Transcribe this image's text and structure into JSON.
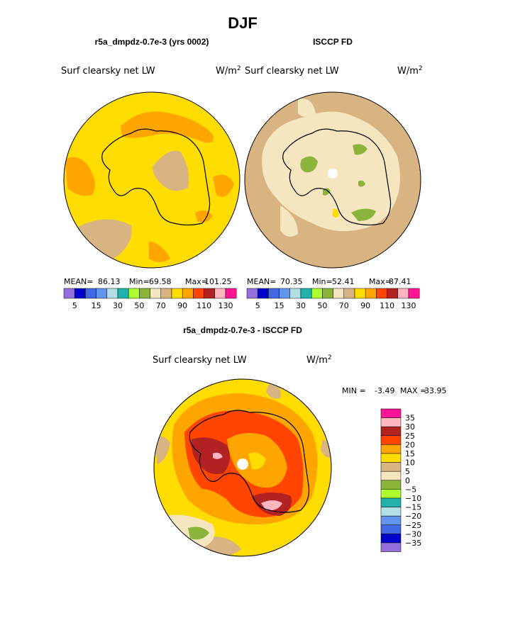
{
  "page_title": "DJF",
  "colors": {
    "sea_yellow": "#ffdd00",
    "orange_light": "#ffa500",
    "tan": "#d9b483",
    "beige": "#f5e6c0",
    "green": "#8cb43c",
    "red_orange": "#ff4500",
    "dark_red": "#b22222",
    "pink_light": "#ffb6c1",
    "coast": "#000000"
  },
  "chart_data": [
    {
      "type": "heatmap",
      "title": "r5a_dmpdz-0.7e-3 (yrs 0002)",
      "variable": "Surf clearsky net LW",
      "units_prefix": "W/m",
      "units_sup": "2",
      "stats": {
        "mean_label": "MEAN=",
        "mean": "86.13",
        "min_label": "Min=",
        "min": "69.58",
        "max_label": "Max=",
        "max": "101.25"
      },
      "colorbar": {
        "colors": [
          "#9370db",
          "#0000cd",
          "#4169e1",
          "#6495ed",
          "#b0e0e6",
          "#20b2aa",
          "#adff2f",
          "#8cb43c",
          "#f5e6c0",
          "#d9b483",
          "#ffdd00",
          "#ffa500",
          "#ff4500",
          "#b22222",
          "#ffb6c1",
          "#ff1493"
        ],
        "tick_labels": [
          "5",
          "15",
          "30",
          "50",
          "70",
          "90",
          "110",
          "130"
        ]
      }
    },
    {
      "type": "heatmap",
      "title": "ISCCP FD",
      "variable": "Surf clearsky net LW",
      "units_prefix": "W/m",
      "units_sup": "2",
      "stats": {
        "mean_label": "MEAN=",
        "mean": "70.35",
        "min_label": "Min=",
        "min": "52.41",
        "max_label": "Max=",
        "max": "87.41"
      },
      "colorbar": {
        "colors": [
          "#9370db",
          "#0000cd",
          "#4169e1",
          "#6495ed",
          "#b0e0e6",
          "#20b2aa",
          "#adff2f",
          "#8cb43c",
          "#f5e6c0",
          "#d9b483",
          "#ffdd00",
          "#ffa500",
          "#ff4500",
          "#b22222",
          "#ffb6c1",
          "#ff1493"
        ],
        "tick_labels": [
          "5",
          "15",
          "30",
          "50",
          "70",
          "90",
          "110",
          "130"
        ]
      }
    },
    {
      "type": "heatmap",
      "title": "r5a_dmpdz-0.7e-3 - ISCCP FD",
      "variable": "Surf clearsky net LW",
      "units_prefix": "W/m",
      "units_sup": "2",
      "stats": {
        "min_label": "MIN =",
        "min": "-3.49",
        "max_label": "MAX =",
        "max": "33.95"
      },
      "colorbar": {
        "colors": [
          "#ff1493",
          "#ffb6c1",
          "#b22222",
          "#ff4500",
          "#ffa500",
          "#ffdd00",
          "#d9b483",
          "#f5e6c0",
          "#8cb43c",
          "#adff2f",
          "#20b2aa",
          "#b0e0e6",
          "#6495ed",
          "#4169e1",
          "#0000cd",
          "#9370db"
        ],
        "tick_labels": [
          "35",
          "30",
          "25",
          "20",
          "15",
          "10",
          "5",
          "0",
          "−5",
          "−10",
          "−15",
          "−20",
          "−25",
          "−30",
          "−35"
        ]
      }
    }
  ]
}
